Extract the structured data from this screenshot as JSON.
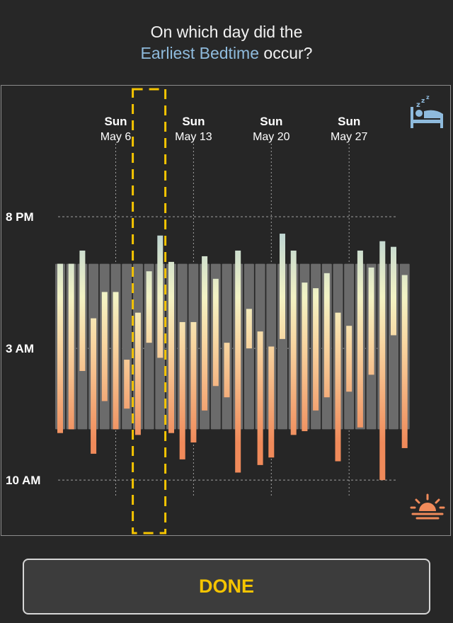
{
  "question": {
    "line1": "On which day did the",
    "accent": "Earliest Bedtime",
    "rest": " occur?"
  },
  "done_label": "DONE",
  "icons": {
    "bed": "bed-sleep-icon",
    "sunrise": "sunrise-icon"
  },
  "colors": {
    "accent": "#8fbbdd",
    "bedtime": "#8fbbdd",
    "wake": "#f08a5a",
    "highlight": "#f5c400",
    "grey_bar": "#6b6b6b"
  },
  "chart_data": {
    "type": "bar",
    "y_ticks": [
      "8 PM",
      "3 AM",
      "10 AM"
    ],
    "x_ticks": [
      {
        "day": "Sun",
        "date": "May 6"
      },
      {
        "day": "Sun",
        "date": "May 13"
      },
      {
        "day": "Sun",
        "date": "May 20"
      },
      {
        "day": "Sun",
        "date": "May 27"
      }
    ],
    "y_range_hours": [
      18,
      13
    ],
    "typical_range": {
      "start": 22.5,
      "end": 7.3
    },
    "highlighted_index": 8,
    "nights": [
      {
        "bed": 22.5,
        "wake": 7.5
      },
      {
        "bed": 22.5,
        "wake": 7.3
      },
      {
        "bed": 21.8,
        "wake": 4.2
      },
      {
        "bed": 1.4,
        "wake": 8.6
      },
      {
        "bed": 0.0,
        "wake": 5.8
      },
      {
        "bed": 0.0,
        "wake": 7.3
      },
      {
        "bed": 3.6,
        "wake": 6.2
      },
      {
        "bed": 1.1,
        "wake": 7.6
      },
      {
        "bed": 22.9,
        "wake": 2.7
      },
      {
        "bed": 21.0,
        "wake": 3.5
      },
      {
        "bed": 22.4,
        "wake": 7.5
      },
      {
        "bed": 1.6,
        "wake": 8.9
      },
      {
        "bed": 1.6,
        "wake": 8.0
      },
      {
        "bed": 22.1,
        "wake": 6.3
      },
      {
        "bed": 23.3,
        "wake": 5.0
      },
      {
        "bed": 2.7,
        "wake": 5.6
      },
      {
        "bed": 21.8,
        "wake": 9.6
      },
      {
        "bed": 0.9,
        "wake": 3.0
      },
      {
        "bed": 2.1,
        "wake": 9.2
      },
      {
        "bed": 2.9,
        "wake": 8.8
      },
      {
        "bed": 20.9,
        "wake": 2.5
      },
      {
        "bed": 21.8,
        "wake": 7.6
      },
      {
        "bed": 23.5,
        "wake": 7.4
      },
      {
        "bed": 23.8,
        "wake": 6.3
      },
      {
        "bed": 23.0,
        "wake": 5.6
      },
      {
        "bed": 1.1,
        "wake": 9.0
      },
      {
        "bed": 1.8,
        "wake": 5.3
      },
      {
        "bed": 21.8,
        "wake": 7.2
      },
      {
        "bed": 22.7,
        "wake": 4.4
      },
      {
        "bed": 21.3,
        "wake": 10.0
      },
      {
        "bed": 21.6,
        "wake": 2.3
      },
      {
        "bed": 23.1,
        "wake": 8.3
      }
    ]
  }
}
